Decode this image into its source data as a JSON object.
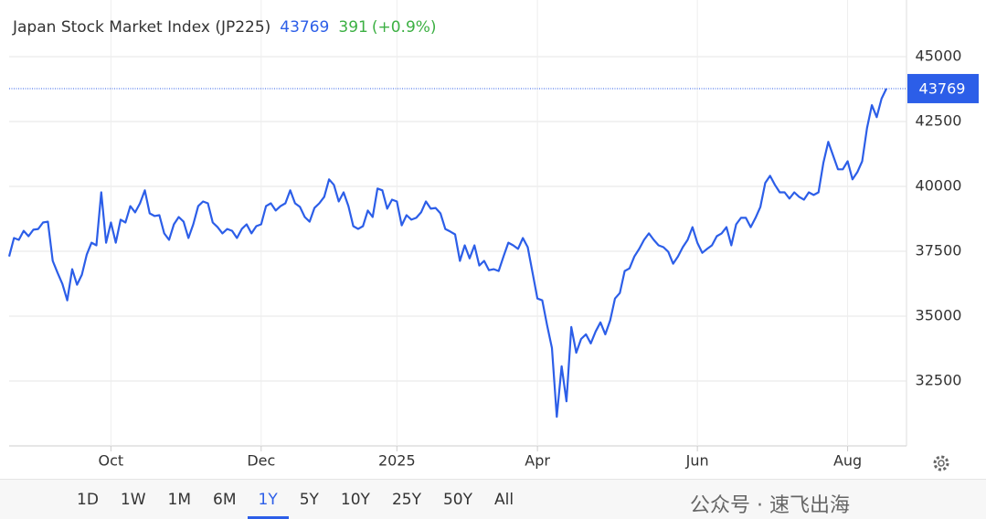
{
  "chart_data": {
    "type": "line",
    "title": "Japan Stock Market Index (JP225)",
    "price": 43769,
    "change": 391,
    "change_label": "(+0.9%)",
    "color": "#2c5ee8",
    "categories": [
      null,
      null,
      null,
      null,
      null,
      null,
      null,
      null,
      null,
      null,
      null,
      null,
      null,
      null,
      null,
      null,
      null,
      null,
      null,
      null,
      null,
      "Oct",
      null,
      null,
      null,
      null,
      null,
      null,
      null,
      null,
      null,
      null,
      null,
      null,
      null,
      null,
      null,
      null,
      null,
      null,
      null,
      null,
      null,
      null,
      null,
      null,
      null,
      null,
      null,
      null,
      null,
      null,
      "Dec",
      null,
      null,
      null,
      null,
      null,
      null,
      null,
      null,
      null,
      null,
      null,
      null,
      null,
      null,
      null,
      null,
      null,
      null,
      null,
      null,
      null,
      null,
      null,
      null,
      null,
      null,
      null,
      "2025",
      null,
      null,
      null,
      null,
      null,
      null,
      null,
      null,
      null,
      null,
      null,
      null,
      null,
      null,
      null,
      null,
      null,
      null,
      null,
      null,
      null,
      null,
      null,
      null,
      null,
      null,
      null,
      null,
      "Apr",
      null,
      null,
      null,
      null,
      null,
      null,
      null,
      null,
      null,
      null,
      null,
      null,
      null,
      null,
      null,
      null,
      null,
      null,
      null,
      null,
      null,
      null,
      null,
      null,
      null,
      null,
      null,
      null,
      null,
      null,
      null,
      null,
      "Jun",
      null,
      null,
      null,
      null,
      null,
      null,
      null,
      null,
      null,
      null,
      null,
      null,
      null,
      null,
      null,
      null,
      null,
      null,
      null,
      null,
      null,
      null,
      null,
      null,
      null,
      null,
      null,
      null,
      null,
      null,
      "Aug",
      null,
      null,
      null,
      null,
      null,
      null,
      null,
      null
    ],
    "values": [
      37300,
      38010,
      37940,
      38290,
      38080,
      38330,
      38360,
      38610,
      38640,
      37130,
      36670,
      36240,
      35610,
      36810,
      36210,
      36600,
      37370,
      37830,
      37730,
      39770,
      37830,
      38610,
      37830,
      38720,
      38610,
      39240,
      39000,
      39350,
      39850,
      38960,
      38860,
      38890,
      38190,
      37940,
      38540,
      38820,
      38640,
      38010,
      38540,
      39240,
      39420,
      39350,
      38610,
      38430,
      38190,
      38360,
      38290,
      38010,
      38360,
      38540,
      38190,
      38470,
      38540,
      39240,
      39350,
      39070,
      39240,
      39350,
      39850,
      39350,
      39210,
      38820,
      38640,
      39170,
      39350,
      39600,
      40270,
      40060,
      39420,
      39770,
      39240,
      38470,
      38360,
      38470,
      39070,
      38820,
      39920,
      39850,
      39140,
      39490,
      39420,
      38500,
      38890,
      38720,
      38790,
      39000,
      39420,
      39140,
      39170,
      38960,
      38360,
      38260,
      38150,
      37130,
      37730,
      37230,
      37730,
      36950,
      37130,
      36770,
      36810,
      36740,
      37300,
      37830,
      37730,
      37590,
      38010,
      37660,
      36670,
      35680,
      35610,
      34650,
      33770,
      31120,
      33070,
      31720,
      34580,
      33590,
      34120,
      34300,
      33950,
      34410,
      34760,
      34300,
      34830,
      35680,
      35890,
      36740,
      36840,
      37300,
      37590,
      37940,
      38190,
      37940,
      37730,
      37660,
      37480,
      37020,
      37300,
      37660,
      37940,
      38430,
      37830,
      37440,
      37590,
      37730,
      38080,
      38190,
      38430,
      37730,
      38540,
      38790,
      38790,
      38430,
      38790,
      39210,
      40130,
      40410,
      40060,
      39770,
      39770,
      39530,
      39770,
      39600,
      39490,
      39770,
      39670,
      39770,
      40900,
      41720,
      41190,
      40660,
      40660,
      40970,
      40270,
      40550,
      40970,
      42250,
      43130,
      42670,
      43380,
      43769
    ],
    "ylim": [
      30000,
      45500
    ],
    "yticks": [
      32500,
      35000,
      37500,
      40000,
      42500,
      45000
    ],
    "grid": true,
    "ranges": [
      "1D",
      "1W",
      "1M",
      "6M",
      "1Y",
      "5Y",
      "10Y",
      "25Y",
      "50Y",
      "All"
    ],
    "selected_range": "1Y",
    "watermark": "公众号 · 速飞出海"
  }
}
